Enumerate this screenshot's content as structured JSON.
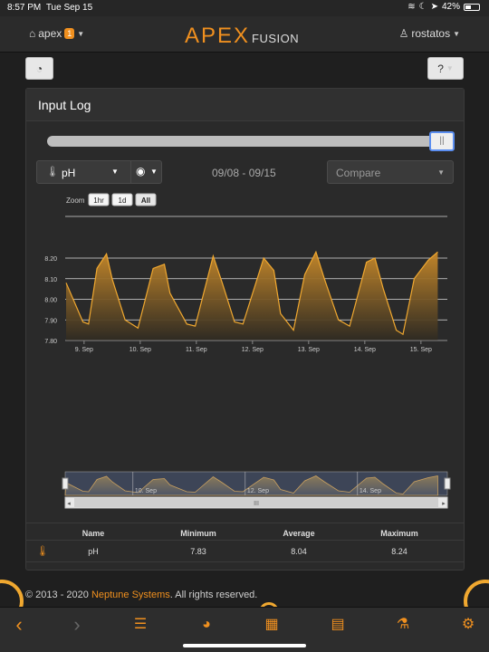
{
  "status_bar": {
    "time": "8:57 PM",
    "date": "Tue Sep 15",
    "battery": "42%",
    "battery_level": 0.42
  },
  "header": {
    "apex_label": "apex",
    "apex_badge": "1",
    "logo_apex": "APEX",
    "logo_fusion": "FUSION",
    "user": "rostatos"
  },
  "panel": {
    "title": "Input Log"
  },
  "controls": {
    "probe": "pH",
    "date_range": "09/08 - 09/15",
    "compare_placeholder": "Compare",
    "range_position": 1.0
  },
  "zoom": {
    "label": "Zoom",
    "buttons": [
      "1hr",
      "1d",
      "All"
    ],
    "selected": "All"
  },
  "chart_data": {
    "type": "area",
    "series": [
      {
        "name": "pH",
        "color": "#f0a830"
      }
    ],
    "x_tick_labels": [
      "9. Sep",
      "10. Sep",
      "11. Sep",
      "12. Sep",
      "13. Sep",
      "14. Sep",
      "15. Sep"
    ],
    "y_tick_labels": [
      "7.80",
      "7.90",
      "8.00",
      "8.10",
      "8.20"
    ],
    "ylim": [
      7.8,
      8.24
    ],
    "navigator_labels": [
      "10. Sep",
      "12. Sep",
      "14. Sep"
    ],
    "daily_peaks": [
      {
        "t": 0.0,
        "v": 8.08
      },
      {
        "t": 0.3,
        "v": 7.89
      },
      {
        "t": 0.4,
        "v": 7.88
      },
      {
        "t": 0.55,
        "v": 8.15
      },
      {
        "t": 0.72,
        "v": 8.22
      },
      {
        "t": 0.82,
        "v": 8.1
      },
      {
        "t": 1.05,
        "v": 7.9
      },
      {
        "t": 1.28,
        "v": 7.86
      },
      {
        "t": 1.55,
        "v": 8.15
      },
      {
        "t": 1.75,
        "v": 8.17
      },
      {
        "t": 1.85,
        "v": 8.03
      },
      {
        "t": 2.15,
        "v": 7.88
      },
      {
        "t": 2.3,
        "v": 7.87
      },
      {
        "t": 2.62,
        "v": 8.21
      },
      {
        "t": 2.78,
        "v": 8.08
      },
      {
        "t": 3.0,
        "v": 7.89
      },
      {
        "t": 3.15,
        "v": 7.88
      },
      {
        "t": 3.52,
        "v": 8.2
      },
      {
        "t": 3.7,
        "v": 8.14
      },
      {
        "t": 3.82,
        "v": 7.93
      },
      {
        "t": 4.05,
        "v": 7.85
      },
      {
        "t": 4.25,
        "v": 8.12
      },
      {
        "t": 4.45,
        "v": 8.23
      },
      {
        "t": 4.6,
        "v": 8.1
      },
      {
        "t": 4.85,
        "v": 7.9
      },
      {
        "t": 5.05,
        "v": 7.87
      },
      {
        "t": 5.35,
        "v": 8.18
      },
      {
        "t": 5.5,
        "v": 8.2
      },
      {
        "t": 5.65,
        "v": 8.05
      },
      {
        "t": 5.88,
        "v": 7.85
      },
      {
        "t": 6.0,
        "v": 7.83
      },
      {
        "t": 6.2,
        "v": 8.1
      },
      {
        "t": 6.45,
        "v": 8.19
      },
      {
        "t": 6.62,
        "v": 8.23
      }
    ]
  },
  "table": {
    "headers": {
      "name": "Name",
      "min": "Minimum",
      "avg": "Average",
      "max": "Maximum"
    },
    "rows": [
      {
        "name": "pH",
        "min": "7.83",
        "avg": "8.04",
        "max": "8.24"
      }
    ]
  },
  "footer": {
    "copyright": "© 2013 - 2020 ",
    "brand": "Neptune Systems",
    "rights": ". All rights reserved."
  },
  "toolbar": {
    "items": [
      "back-icon",
      "forward-icon",
      "list-icon",
      "dashboard-icon",
      "calendar-icon",
      "log-icon",
      "flask-icon",
      "gear-icon"
    ]
  }
}
